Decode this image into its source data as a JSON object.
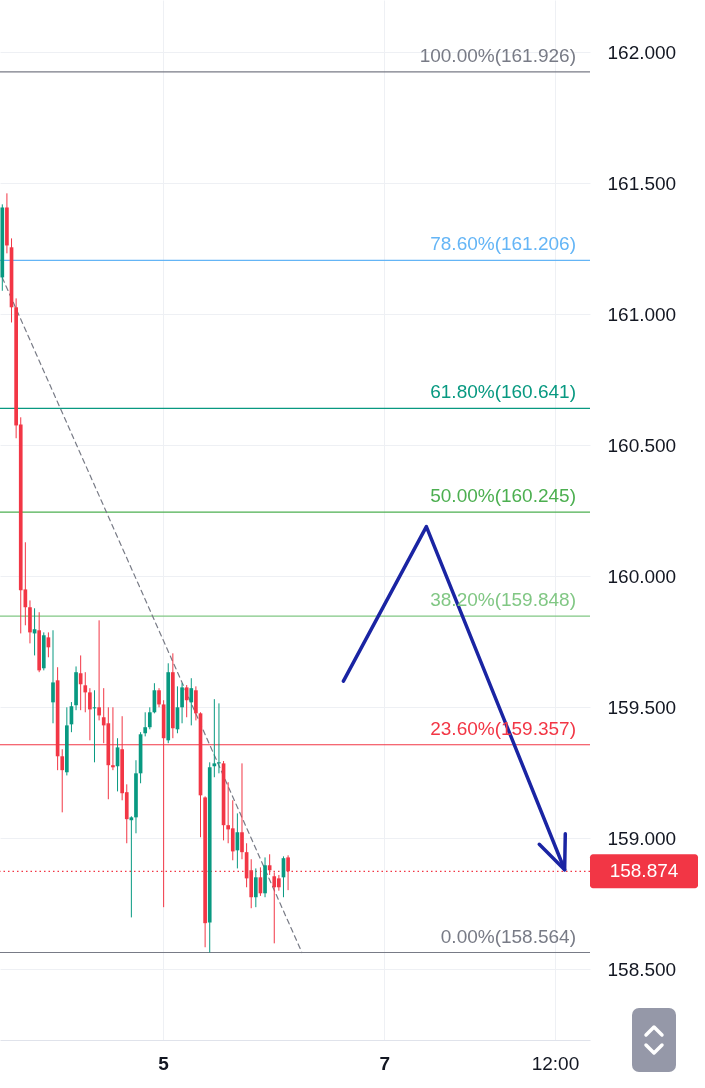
{
  "chart_data": {
    "type": "candlestick",
    "categories": [
      null,
      null,
      null,
      null,
      null,
      null,
      null,
      null,
      null,
      null,
      null,
      null,
      null,
      null,
      null,
      null,
      null,
      null,
      null,
      null,
      null,
      null,
      null,
      null,
      null,
      null,
      null,
      null,
      null,
      null,
      null,
      null,
      null,
      null,
      null,
      "5",
      null,
      null,
      null,
      null,
      null,
      null,
      null,
      null,
      null,
      null,
      null,
      null,
      null,
      null,
      null,
      null,
      null,
      null,
      null,
      null,
      null,
      null,
      null,
      null,
      null,
      null,
      null,
      null,
      null,
      null,
      null,
      null,
      null,
      null,
      null,
      null,
      null,
      null,
      null,
      null,
      null,
      null,
      null,
      null,
      null,
      null,
      null,
      "7",
      null,
      null,
      null,
      null,
      null,
      null,
      null,
      null,
      null,
      null,
      null,
      null,
      null,
      null,
      null,
      null,
      null,
      null,
      null,
      null,
      null,
      null,
      null,
      null,
      null,
      null,
      null,
      null,
      null,
      null,
      null,
      null,
      null,
      null,
      null,
      null,
      "12:00",
      null,
      null,
      null,
      null,
      null,
      null,
      null
    ],
    "ohlc": [
      [
        161.141,
        161.42,
        161.09,
        161.408
      ],
      [
        161.408,
        161.462,
        161.233,
        161.263
      ],
      [
        161.256,
        161.29,
        160.969,
        161.027
      ],
      [
        161.027,
        161.061,
        160.527,
        160.576
      ],
      [
        160.58,
        160.607,
        159.782,
        159.947
      ],
      [
        159.95,
        160.13,
        159.813,
        159.882
      ],
      [
        159.882,
        159.908,
        159.744,
        159.786
      ],
      [
        159.782,
        159.878,
        159.698,
        159.798
      ],
      [
        159.794,
        159.863,
        159.634,
        159.641
      ],
      [
        159.649,
        159.786,
        159.641,
        159.775
      ],
      [
        159.767,
        159.786,
        159.691,
        159.729
      ],
      [
        159.519,
        159.794,
        159.439,
        159.595
      ],
      [
        159.603,
        159.653,
        159.26,
        159.313
      ],
      [
        159.313,
        159.34,
        159.099,
        159.26
      ],
      [
        159.252,
        159.5,
        159.24,
        159.431
      ],
      [
        159.435,
        159.52,
        159.405,
        159.504
      ],
      [
        159.508,
        159.656,
        159.489,
        159.634
      ],
      [
        159.63,
        159.698,
        159.489,
        159.588
      ],
      [
        159.584,
        159.634,
        159.481,
        159.557
      ],
      [
        159.557,
        159.573,
        159.374,
        159.492
      ],
      [
        159.496,
        159.565,
        159.29,
        159.5
      ],
      [
        159.5,
        159.832,
        159.45,
        159.469
      ],
      [
        159.462,
        159.573,
        159.363,
        159.431
      ],
      [
        159.439,
        159.5,
        159.149,
        159.279
      ],
      [
        159.279,
        159.5,
        159.26,
        159.271
      ],
      [
        159.275,
        159.382,
        159.179,
        159.347
      ],
      [
        159.34,
        159.466,
        159.145,
        159.172
      ],
      [
        159.176,
        159.206,
        158.981,
        159.073
      ],
      [
        159.069,
        159.084,
        158.698,
        159.08
      ],
      [
        159.08,
        159.298,
        159.019,
        159.248
      ],
      [
        159.248,
        159.405,
        159.21,
        159.397
      ],
      [
        159.401,
        159.481,
        159.389,
        159.424
      ],
      [
        159.424,
        159.5,
        159.416,
        159.481
      ],
      [
        159.481,
        159.592,
        159.477,
        159.565
      ],
      [
        159.565,
        159.573,
        159.5,
        159.511
      ],
      [
        159.511,
        159.527,
        158.737,
        159.382
      ],
      [
        159.374,
        159.668,
        159.363,
        159.634
      ],
      [
        159.634,
        159.706,
        159.382,
        159.42
      ],
      [
        159.416,
        159.58,
        159.401,
        159.5
      ],
      [
        159.5,
        159.592,
        159.439,
        159.576
      ],
      [
        159.576,
        159.585,
        159.462,
        159.527
      ],
      [
        159.519,
        159.611,
        159.431,
        159.573
      ],
      [
        159.565,
        159.58,
        159.45,
        159.477
      ],
      [
        159.477,
        159.481,
        159.004,
        159.164
      ],
      [
        159.156,
        159.16,
        158.584,
        158.676
      ],
      [
        158.679,
        159.29,
        158.564,
        159.271
      ],
      [
        159.275,
        159.531,
        159.233,
        159.286
      ],
      [
        159.286,
        159.515,
        159.248,
        159.29
      ],
      [
        159.286,
        159.295,
        158.992,
        159.05
      ],
      [
        159.05,
        159.214,
        158.981,
        159.034
      ],
      [
        159.038,
        159.145,
        158.916,
        158.95
      ],
      [
        158.954,
        159.095,
        158.885,
        159.023
      ],
      [
        159.023,
        159.286,
        158.92,
        158.947
      ],
      [
        158.947,
        158.981,
        158.813,
        158.847
      ],
      [
        158.878,
        158.92,
        158.733,
        158.775
      ],
      [
        158.775,
        158.885,
        158.737,
        158.851
      ],
      [
        158.851,
        158.889,
        158.78,
        158.79
      ],
      [
        158.79,
        158.927,
        158.775,
        158.897
      ],
      [
        158.897,
        158.939,
        158.86,
        158.878
      ],
      [
        158.855,
        158.87,
        158.599,
        158.813
      ],
      [
        158.847,
        158.86,
        158.8,
        158.813
      ],
      [
        158.851,
        158.931,
        158.775,
        158.924
      ],
      [
        158.927,
        158.935,
        158.802,
        158.874
      ],
      null,
      null,
      null,
      null,
      null,
      null,
      null,
      null,
      null,
      null,
      null,
      null,
      null,
      null,
      null,
      null,
      null,
      null,
      null,
      null,
      null,
      null,
      null,
      null,
      null,
      null,
      null,
      null,
      null,
      null,
      null,
      null,
      null,
      null,
      null,
      null,
      null,
      null,
      null,
      null,
      null,
      null,
      null,
      null,
      null,
      null,
      null,
      null,
      null,
      null,
      null,
      null,
      null,
      null,
      null,
      null,
      null,
      null,
      null,
      null,
      null,
      null,
      null,
      null,
      null
    ],
    "colors": [
      "#089981",
      "#f23645",
      "#f23645",
      "#f23645",
      "#f23645",
      "#f23645",
      "#f23645",
      "#089981",
      "#f23645",
      "#089981",
      "#f23645",
      "#089981",
      "#f23645",
      "#f23645",
      "#089981",
      "#089981",
      "#089981",
      "#f23645",
      "#f23645",
      "#f23645",
      "#089981",
      "#f23645",
      "#f23645",
      "#f23645",
      "#f23645",
      "#089981",
      "#f23645",
      "#f23645",
      "#089981",
      "#089981",
      "#089981",
      "#089981",
      "#089981",
      "#089981",
      "#f23645",
      "#f23645",
      "#089981",
      "#f23645",
      "#089981",
      "#089981",
      "#f23645",
      "#089981",
      "#f23645",
      "#f23645",
      "#f23645",
      "#089981",
      "#089981",
      "#089981",
      "#f23645",
      "#f23645",
      "#f23645",
      "#089981",
      "#f23645",
      "#f23645",
      "#f23645",
      "#089981",
      "#f23645",
      "#089981",
      "#f23645",
      "#f23645",
      "#f23645",
      "#089981",
      "#f23645",
      null,
      null,
      null,
      null,
      null,
      null,
      null,
      null,
      null,
      null,
      null,
      null,
      null,
      null,
      null,
      null,
      null,
      null,
      null,
      null,
      null,
      null,
      null,
      null,
      null,
      null,
      null,
      null,
      null,
      null,
      null,
      null,
      null,
      null,
      null,
      null,
      null,
      null,
      null,
      null,
      null,
      null,
      null,
      null,
      null,
      null,
      null,
      null,
      null,
      null,
      null,
      null,
      null,
      null,
      null,
      null,
      null,
      null,
      null,
      null,
      null,
      null,
      null,
      null,
      null
    ],
    "series": [
      {
        "type": "line",
        "color": "#787b86",
        "line_style": "dashed",
        "values": [
          161.14,
          null,
          null,
          null,
          null,
          null,
          null,
          null,
          null,
          null,
          null,
          null,
          null,
          null,
          null,
          null,
          null,
          null,
          null,
          null,
          null,
          null,
          null,
          null,
          null,
          null,
          null,
          null,
          null,
          null,
          null,
          null,
          null,
          null,
          null,
          null,
          null,
          null,
          null,
          null,
          null,
          null,
          null,
          null,
          null,
          null,
          null,
          null,
          null,
          null,
          null,
          null,
          null,
          null,
          null,
          null,
          null,
          null,
          null,
          null,
          null,
          null,
          null,
          null,
          null,
          158.564,
          null,
          null,
          null,
          null,
          null,
          null,
          null,
          null,
          null,
          null,
          null,
          null,
          null,
          null,
          null,
          null,
          null,
          null,
          null,
          null,
          null,
          null,
          null,
          null,
          null,
          null,
          null,
          null,
          null,
          null,
          null,
          null,
          null,
          null,
          null,
          null,
          null,
          null,
          null,
          null,
          null,
          null,
          null,
          null,
          null,
          null,
          null,
          null,
          null,
          null,
          null,
          null,
          null,
          null,
          null,
          null,
          null,
          null,
          null,
          null,
          null,
          null
        ]
      },
      {
        "type": "line",
        "color": "#1a24a3",
        "values": [
          null,
          null,
          null,
          null,
          null,
          null,
          null,
          null,
          null,
          null,
          null,
          null,
          null,
          null,
          null,
          null,
          null,
          null,
          null,
          null,
          null,
          null,
          null,
          null,
          null,
          null,
          null,
          null,
          null,
          null,
          null,
          null,
          null,
          null,
          null,
          null,
          null,
          null,
          null,
          null,
          null,
          null,
          null,
          null,
          null,
          null,
          null,
          null,
          null,
          null,
          null,
          null,
          null,
          null,
          null,
          null,
          null,
          null,
          null,
          null,
          null,
          null,
          null,
          null,
          null,
          null,
          null,
          null,
          null,
          null,
          null,
          null,
          null,
          null,
          159.6,
          null,
          null,
          null,
          null,
          null,
          null,
          null,
          null,
          null,
          null,
          null,
          null,
          null,
          null,
          null,
          null,
          null,
          160.19,
          null,
          null,
          null,
          null,
          null,
          null,
          null,
          null,
          null,
          null,
          null,
          null,
          null,
          null,
          null,
          null,
          null,
          null,
          null,
          null,
          null,
          null,
          null,
          null,
          null,
          null,
          null,
          null,
          null,
          158.88,
          null,
          null,
          null,
          null,
          null
        ]
      }
    ],
    "ref_lines": [
      {
        "axis": "y",
        "value": 161.926,
        "label": "100.00%(161.926)",
        "color": "#787b86"
      },
      {
        "axis": "y",
        "value": 161.206,
        "label": "78.60%(161.206)",
        "color": "#64b5f6"
      },
      {
        "axis": "y",
        "value": 160.641,
        "label": "61.80%(160.641)",
        "color": "#089981"
      },
      {
        "axis": "y",
        "value": 160.245,
        "label": "50.00%(160.245)",
        "color": "#4caf50"
      },
      {
        "axis": "y",
        "value": 159.848,
        "label": "38.20%(159.848)",
        "color": "#81c784"
      },
      {
        "axis": "y",
        "value": 159.357,
        "label": "23.60%(159.357)",
        "color": "#f23645"
      },
      {
        "axis": "y",
        "value": 158.564,
        "label": "0.00%(158.564)",
        "color": "#787b86"
      },
      {
        "axis": "y",
        "value": 158.874,
        "label": "158.874",
        "color": "#f23645",
        "line_style": "dotted"
      }
    ],
    "ylim": [
      158.23,
      162.2
    ],
    "yticks": [
      {
        "value": 158.5,
        "label": "158.500"
      },
      {
        "value": 159,
        "label": "159.000"
      },
      {
        "value": 159.5,
        "label": "159.500"
      },
      {
        "value": 160,
        "label": "160.000"
      },
      {
        "value": 160.5,
        "label": "160.500"
      },
      {
        "value": 161,
        "label": "161.000"
      },
      {
        "value": 161.5,
        "label": "161.500"
      },
      {
        "value": 162,
        "label": "162.000"
      }
    ],
    "grid": true
  }
}
